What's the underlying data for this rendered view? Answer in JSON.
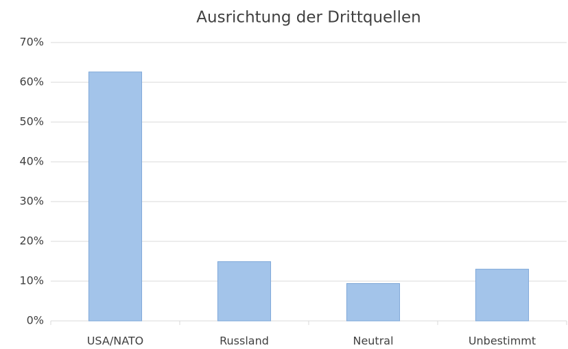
{
  "chart_data": {
    "type": "bar",
    "title": "Ausrichtung der Drittquellen",
    "categories": [
      "USA/NATO",
      "Russland",
      "Neutral",
      "Unbestimmt"
    ],
    "values": [
      62.6,
      14.9,
      9.4,
      13.0
    ],
    "color": "#a3c4ea",
    "ylim": [
      0,
      70
    ],
    "yticks": [
      {
        "value": 0,
        "label": "0%"
      },
      {
        "value": 10,
        "label": "10%"
      },
      {
        "value": 20,
        "label": "20%"
      },
      {
        "value": 30,
        "label": "30%"
      },
      {
        "value": 40,
        "label": "40%"
      },
      {
        "value": 50,
        "label": "50%"
      },
      {
        "value": 60,
        "label": "60%"
      },
      {
        "value": 70,
        "label": "70%"
      }
    ],
    "grid": true
  }
}
